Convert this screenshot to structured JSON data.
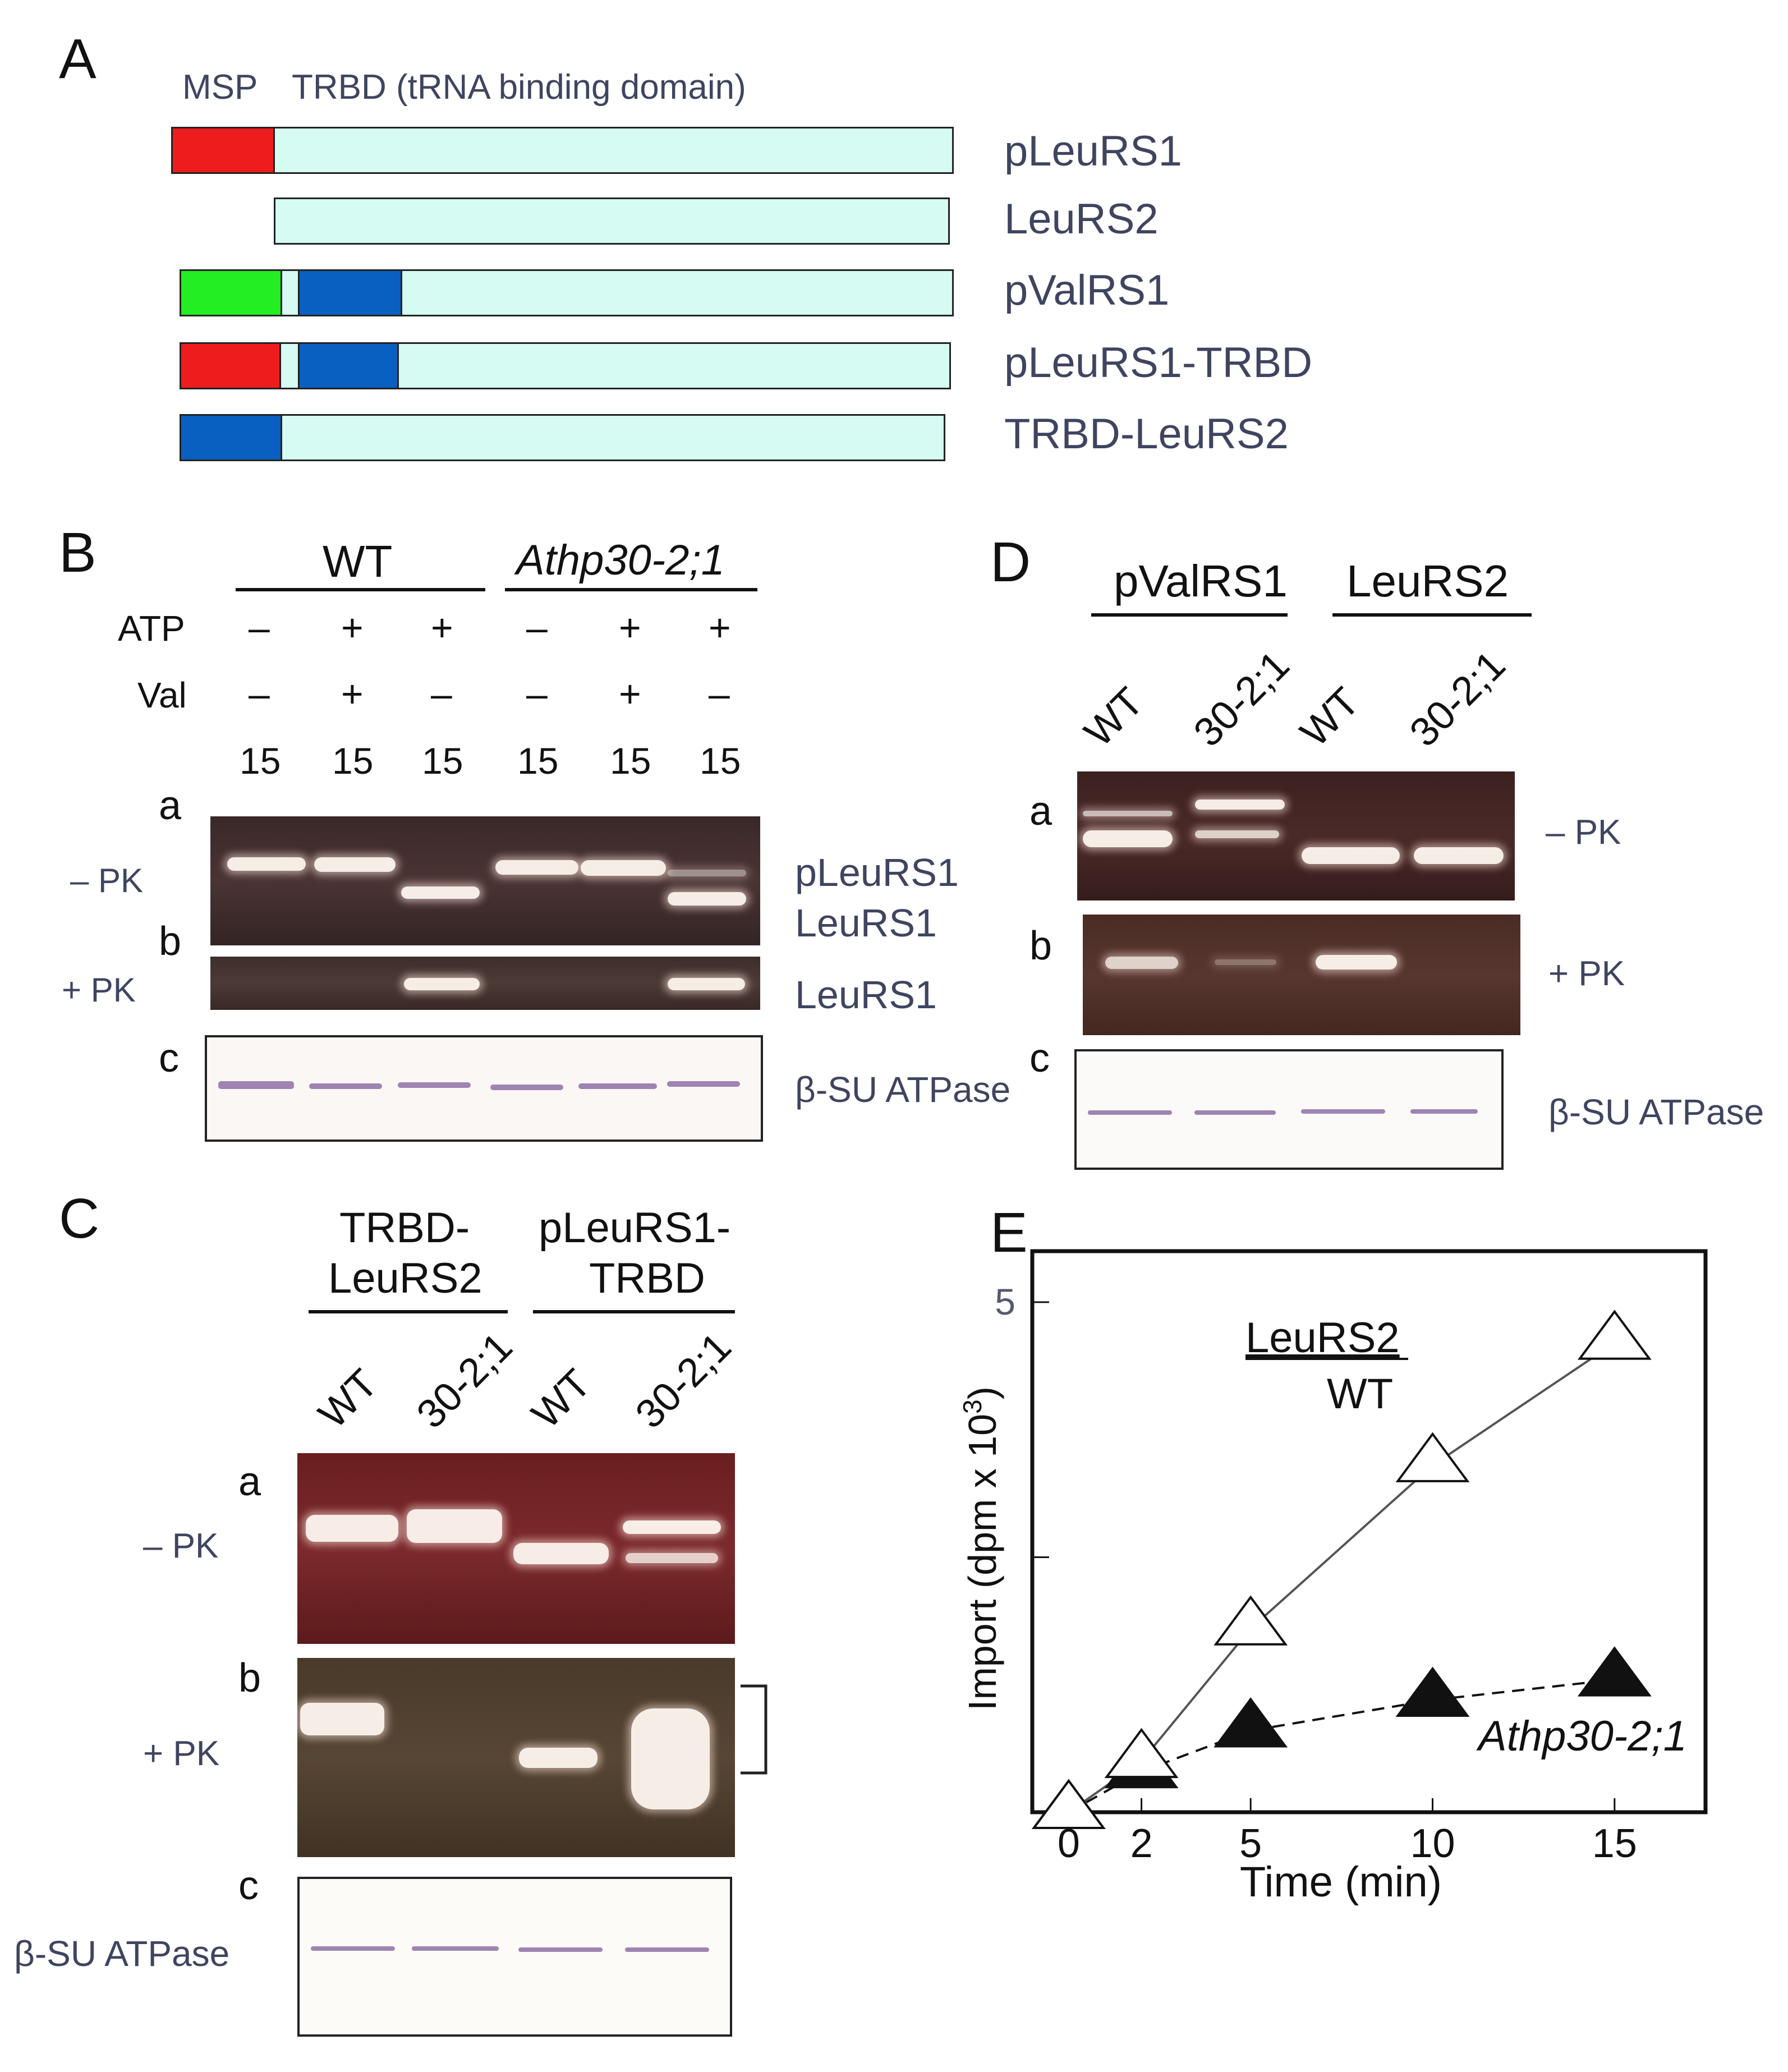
{
  "panelA": {
    "letter": "A",
    "legend_msp": "MSP",
    "legend_trbd": "TRBD (tRNA binding domain)",
    "constructs": [
      "pLeuRS1",
      "LeuRS2",
      "pValRS1",
      "pLeuRS1-TRBD",
      "TRBD-LeuRS2"
    ],
    "colors": {
      "msp_leu": "#ee1c1c",
      "msp_val": "#22ee22",
      "trbd": "#0a60c0",
      "body": "#d5fbf2"
    }
  },
  "panelB": {
    "letter": "B",
    "group_wt": "WT",
    "group_mut": "Athp30-2;1",
    "row_atp": "ATP",
    "row_val": "Val",
    "atp": [
      "–",
      "+",
      "+",
      "–",
      "+",
      "+"
    ],
    "val": [
      "–",
      "+",
      "–",
      "–",
      "+",
      "–"
    ],
    "times": [
      "15",
      "15",
      "15",
      "15",
      "15",
      "15"
    ],
    "sub_a": "a",
    "sub_b": "b",
    "sub_c": "c",
    "minus_pk": "– PK",
    "plus_pk": "+ PK",
    "band_plr": "pLeuRS1",
    "band_lr": "LeuRS1",
    "band_lr_b": "LeuRS1",
    "atpase": "β-SU ATPase"
  },
  "panelC": {
    "letter": "C",
    "group1_l1": "TRBD-",
    "group1_l2": "LeuRS2",
    "group2_l1": "pLeuRS1-",
    "group2_l2": "TRBD",
    "lanes": [
      "WT",
      "30-2;1",
      "WT",
      "30-2;1"
    ],
    "sub_a": "a",
    "sub_b": "b",
    "sub_c": "c",
    "minus_pk": "– PK",
    "plus_pk": "+ PK",
    "atpase": "β-SU ATPase"
  },
  "panelD": {
    "letter": "D",
    "group1": "pValRS1",
    "group2": "LeuRS2",
    "lanes": [
      "WT",
      "30-2;1",
      "WT",
      "30-2;1"
    ],
    "sub_a": "a",
    "sub_b": "b",
    "sub_c": "c",
    "minus_pk": "– PK",
    "plus_pk": "+ PK",
    "atpase": "β-SU ATPase"
  },
  "panelE": {
    "letter": "E",
    "legend_title": "LeuRS2",
    "legend_wt": "WT",
    "legend_mut": "Athp30-2;1",
    "ylabel": "Import (dpm x 10",
    "ylabel_sup": "3",
    "ylabel_end": ")",
    "xlabel": "Time (min)",
    "ytick_label": "5",
    "xtick_labels": [
      "0",
      "2",
      "5",
      "10",
      "15"
    ]
  },
  "chart_data": {
    "type": "line",
    "title": "",
    "xlabel": "Time (min)",
    "ylabel": "Import (dpm x 10^3)",
    "x": [
      0,
      2,
      5,
      10,
      15
    ],
    "xlim": [
      -1,
      17.5
    ],
    "ylim": [
      0,
      5.5
    ],
    "yticks": [
      0,
      2.5,
      5
    ],
    "series": [
      {
        "name": "WT",
        "marker": "open-triangle",
        "line": "solid",
        "values": [
          0,
          0.5,
          1.8,
          3.4,
          4.6
        ]
      },
      {
        "name": "Athp30-2;1",
        "marker": "filled-triangle",
        "line": "dashed",
        "values": [
          0,
          0.4,
          0.8,
          1.1,
          1.3
        ]
      }
    ]
  }
}
